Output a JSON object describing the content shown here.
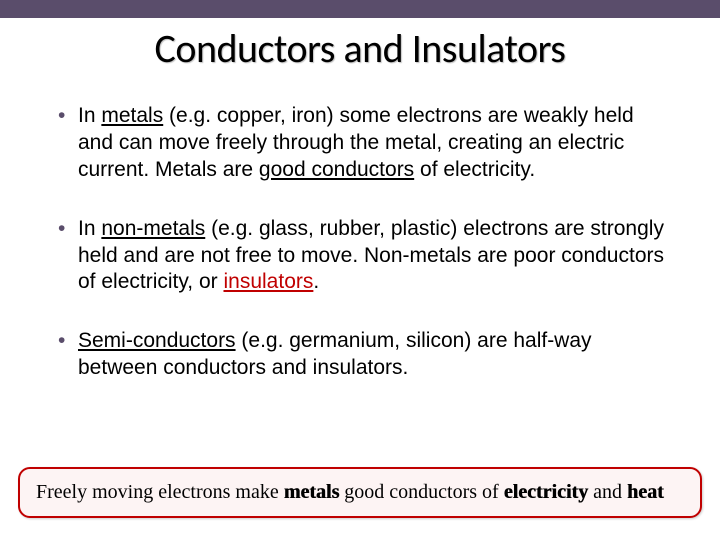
{
  "colors": {
    "top_bar": "#5a4d6b",
    "title_text": "#000000",
    "body_text": "#000000",
    "accent_red": "#c00000",
    "callout_border": "#c00000",
    "callout_bg": "#fdf4f4",
    "background": "#ffffff"
  },
  "typography": {
    "title_font": "Calibri",
    "title_size_pt": 40,
    "body_font": "Arial",
    "body_size_pt": 21,
    "callout_font": "Times New Roman",
    "callout_size_pt": 20
  },
  "title": "Conductors and Insulators",
  "bullets": {
    "b1_p1": "In ",
    "b1_metals": "metals",
    "b1_p2": " (e.g. copper, iron) some electrons are weakly held and can move freely through the metal, creating an electric current.  Metals are ",
    "b1_good_conductors": "good conductors",
    "b1_p3": " of electricity.",
    "b2_p1": "In ",
    "b2_nonmetals": "non-metals",
    "b2_p2": " (e.g. glass, rubber, plastic) electrons are strongly held and are not free to move.  Non-metals are poor conductors of electricity, or ",
    "b2_insulators": "insulators",
    "b2_p3": ".",
    "b3_semi": "Semi-conductors",
    "b3_p1": " (e.g. germanium, silicon) are half-way between conductors and insulators."
  },
  "callout": {
    "p1": "Freely moving electrons make ",
    "metals": "metals",
    "p2": " good conductors of ",
    "electricity": "electricity",
    "p3": " and ",
    "heat": "heat"
  }
}
